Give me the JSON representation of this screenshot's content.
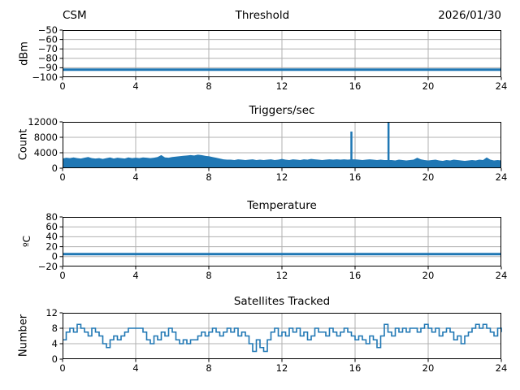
{
  "header": {
    "left": "CSM",
    "center": "Threshold",
    "right": "2026/01/30"
  },
  "colors": {
    "line": "#1f77b4",
    "grid": "#b0b0b0",
    "spine": "#000000",
    "text": "#000000",
    "background": "#ffffff"
  },
  "chart_data": [
    {
      "type": "line",
      "title": "Threshold",
      "ylabel": "dBm",
      "xlim": [
        0,
        24
      ],
      "ylim": [
        -100,
        -50
      ],
      "xticks": [
        0,
        4,
        8,
        12,
        16,
        20,
        24
      ],
      "yticks": [
        -100,
        -90,
        -80,
        -70,
        -60,
        -50
      ],
      "grid": true,
      "constant_value": -92
    },
    {
      "type": "area",
      "title": "Triggers/sec",
      "ylabel": "Count",
      "xlim": [
        0,
        24
      ],
      "ylim": [
        0,
        12000
      ],
      "xticks": [
        0,
        4,
        8,
        12,
        16,
        20,
        24
      ],
      "yticks": [
        0,
        4000,
        8000,
        12000
      ],
      "grid": true,
      "x_step": 0.2,
      "top": [
        2500,
        2700,
        2600,
        2800,
        2600,
        2500,
        2700,
        2900,
        2600,
        2500,
        2600,
        2400,
        2600,
        2800,
        2500,
        2700,
        2600,
        2500,
        2800,
        2600,
        2700,
        2600,
        2800,
        2700,
        2600,
        2700,
        2900,
        3400,
        2800,
        2700,
        2900,
        3000,
        3100,
        3200,
        3300,
        3400,
        3300,
        3500,
        3400,
        3200,
        3100,
        2900,
        2700,
        2500,
        2300,
        2200,
        2200,
        2100,
        2300,
        2200,
        2100,
        2200,
        2300,
        2100,
        2200,
        2100,
        2200,
        2300,
        2100,
        2200,
        2400,
        2200,
        2100,
        2300,
        2200,
        2100,
        2300,
        2200,
        2400,
        2300,
        2200,
        2100,
        2200,
        2300,
        2200,
        2300,
        2200,
        2300,
        2200,
        2300,
        2300,
        2200,
        2100,
        2200,
        2300,
        2200,
        2100,
        2200,
        2100,
        2100,
        2100,
        2000,
        2200,
        2100,
        2000,
        2100,
        2200,
        2700,
        2300,
        2100,
        2000,
        2100,
        2200,
        2000,
        1900,
        2100,
        2000,
        2200,
        2100,
        2000,
        1900,
        2000,
        2100,
        2000,
        2200,
        2100,
        2800,
        2200,
        2000,
        2100,
        2000
      ],
      "spikes": [
        {
          "x": 15.8,
          "value": 9500
        },
        {
          "x": 17.83,
          "value": 12000
        }
      ]
    },
    {
      "type": "line",
      "title": "Temperature",
      "ylabel": "ºC",
      "xlim": [
        0,
        24
      ],
      "ylim": [
        -20,
        80
      ],
      "xticks": [
        0,
        4,
        8,
        12,
        16,
        20,
        24
      ],
      "yticks": [
        -20,
        0,
        20,
        40,
        60,
        80
      ],
      "grid": true,
      "constant_value": 5
    },
    {
      "type": "line",
      "title": "Satellites Tracked",
      "ylabel": "Number",
      "xlim": [
        0,
        24
      ],
      "ylim": [
        0,
        12
      ],
      "xticks": [
        0,
        4,
        8,
        12,
        16,
        20,
        24
      ],
      "yticks": [
        0,
        4,
        8,
        12
      ],
      "grid": true,
      "x_step": 0.2,
      "values": [
        5,
        7,
        8,
        7,
        9,
        8,
        7,
        6,
        8,
        7,
        6,
        4,
        3,
        5,
        6,
        5,
        6,
        7,
        8,
        8,
        8,
        8,
        7,
        5,
        4,
        6,
        5,
        7,
        6,
        8,
        7,
        5,
        4,
        5,
        4,
        5,
        5,
        6,
        7,
        6,
        7,
        8,
        7,
        6,
        7,
        8,
        7,
        8,
        6,
        7,
        6,
        4,
        2,
        5,
        3,
        2,
        5,
        7,
        8,
        6,
        7,
        6,
        8,
        7,
        8,
        6,
        7,
        5,
        6,
        8,
        7,
        7,
        6,
        8,
        7,
        6,
        7,
        8,
        7,
        6,
        5,
        6,
        5,
        4,
        6,
        5,
        3,
        6,
        9,
        7,
        6,
        8,
        7,
        8,
        7,
        8,
        8,
        7,
        8,
        9,
        8,
        7,
        8,
        6,
        7,
        8,
        7,
        5,
        6,
        4,
        6,
        7,
        8,
        9,
        8,
        9,
        8,
        7,
        6,
        8,
        7
      ]
    }
  ]
}
